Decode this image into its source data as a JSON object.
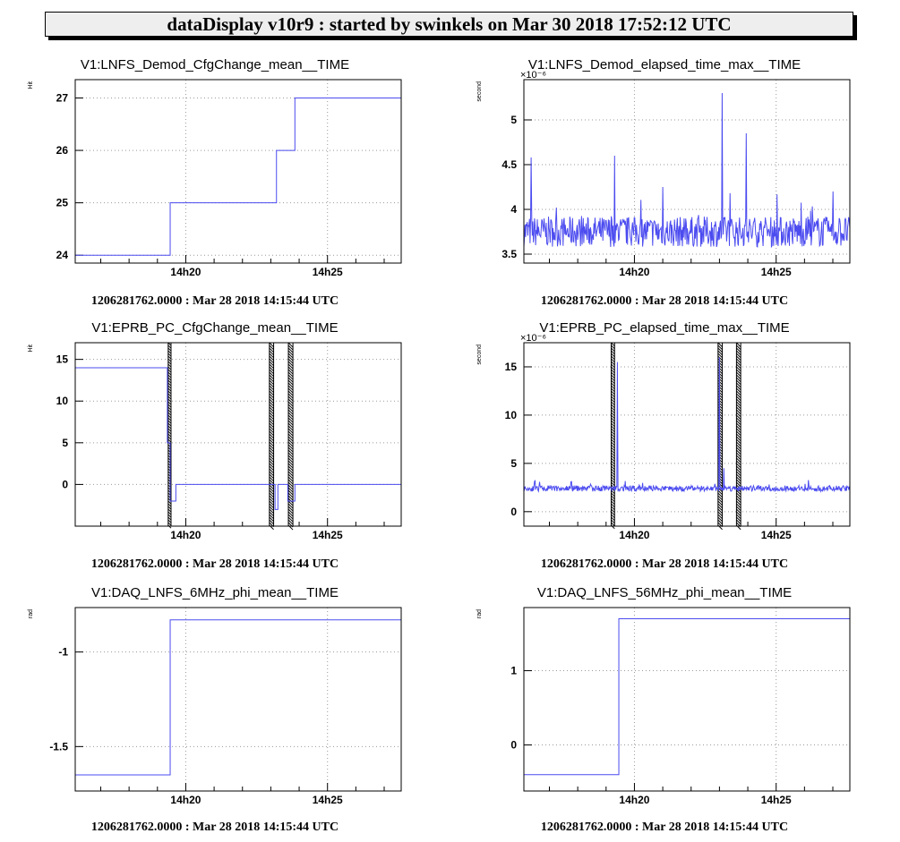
{
  "header": {
    "title": "dataDisplay v10r9 : started by swinkels on Mar 30 2018 17:52:12 UTC"
  },
  "colors": {
    "line": "#4b4bf0",
    "grid": "#9a9a9a",
    "axis": "#000000",
    "band": "#000000"
  },
  "chart_data": [
    {
      "type": "line",
      "title": "V1:LNFS_Demod_CfgChange_mean__TIME",
      "ylabel": "Hit",
      "timestamp": "1206281762.0000 : Mar 28 2018 14:15:44 UTC",
      "xticks": [
        {
          "min": 20,
          "label": "14h20"
        },
        {
          "min": 25,
          "label": "14h25"
        }
      ],
      "xlim": [
        16.1,
        27.6
      ],
      "ylim": [
        23.85,
        27.35
      ],
      "yticks": [
        {
          "v": 24,
          "label": "24"
        },
        {
          "v": 25,
          "label": "25"
        },
        {
          "v": 26,
          "label": "26"
        },
        {
          "v": 27,
          "label": "27"
        }
      ],
      "series": [
        {
          "kind": "step",
          "x": [
            16.1,
            19.45,
            23.2,
            23.85,
            27.6
          ],
          "y": [
            24,
            25,
            26,
            27,
            27
          ]
        }
      ]
    },
    {
      "type": "line",
      "title": "V1:LNFS_Demod_elapsed_time_max__TIME",
      "ylabel": "second",
      "multiplier": "×10⁻⁶",
      "timestamp": "1206281762.0000 : Mar 28 2018 14:15:44 UTC",
      "xticks": [
        {
          "min": 20,
          "label": "14h20"
        },
        {
          "min": 25,
          "label": "14h25"
        }
      ],
      "xlim": [
        16.1,
        27.6
      ],
      "ylim": [
        3.4,
        5.45
      ],
      "yticks": [
        {
          "v": 3.5,
          "label": "3.5"
        },
        {
          "v": 4,
          "label": "4"
        },
        {
          "v": 4.5,
          "label": "4.5"
        },
        {
          "v": 5,
          "label": "5"
        }
      ],
      "series": [
        {
          "kind": "noise",
          "x": [
            16.1,
            27.6
          ],
          "base": 3.75,
          "amp": 0.17,
          "spike_prob": 0.05,
          "spike_amp": 0.3,
          "seed": 7,
          "spikes": [
            [
              16.35,
              4.58
            ],
            [
              19.3,
              4.6
            ],
            [
              23.1,
              5.3
            ],
            [
              23.95,
              4.85
            ],
            [
              21.0,
              4.25
            ],
            [
              27.0,
              4.2
            ]
          ]
        }
      ]
    },
    {
      "type": "line",
      "title": "V1:EPRB_PC_CfgChange_mean__TIME",
      "ylabel": "Hit",
      "timestamp": "1206281762.0000 : Mar 28 2018 14:15:44 UTC",
      "xticks": [
        {
          "min": 20,
          "label": "14h20"
        },
        {
          "min": 25,
          "label": "14h25"
        }
      ],
      "xlim": [
        16.1,
        27.6
      ],
      "ylim": [
        -5,
        17
      ],
      "yticks": [
        {
          "v": 0,
          "label": "0"
        },
        {
          "v": 5,
          "label": "5"
        },
        {
          "v": 10,
          "label": "10"
        },
        {
          "v": 15,
          "label": "15"
        }
      ],
      "bands": [
        [
          19.38,
          19.48
        ],
        [
          22.95,
          23.1
        ],
        [
          23.62,
          23.78
        ]
      ],
      "series": [
        {
          "kind": "step",
          "x": [
            16.1,
            19.35,
            19.45,
            19.58,
            19.65,
            23.15,
            23.25,
            23.6,
            23.85,
            27.6
          ],
          "y": [
            14,
            5,
            -2,
            -2,
            0,
            -3,
            0,
            -2,
            0,
            0
          ]
        }
      ]
    },
    {
      "type": "line",
      "title": "V1:EPRB_PC_elapsed_time_max__TIME",
      "ylabel": "second",
      "multiplier": "×10⁻⁶",
      "timestamp": "1206281762.0000 : Mar 28 2018 14:15:44 UTC",
      "xticks": [
        {
          "min": 20,
          "label": "14h20"
        },
        {
          "min": 25,
          "label": "14h25"
        }
      ],
      "xlim": [
        16.1,
        27.6
      ],
      "ylim": [
        -1.5,
        17.5
      ],
      "yticks": [
        {
          "v": 0,
          "label": "0"
        },
        {
          "v": 5,
          "label": "5"
        },
        {
          "v": 10,
          "label": "10"
        },
        {
          "v": 15,
          "label": "15"
        }
      ],
      "bands": [
        [
          19.18,
          19.3
        ],
        [
          22.95,
          23.1
        ],
        [
          23.6,
          23.75
        ]
      ],
      "series": [
        {
          "kind": "noise",
          "x": [
            16.1,
            27.6
          ],
          "base": 2.4,
          "amp": 0.3,
          "spike_prob": 0.03,
          "spike_amp": 0.7,
          "seed": 11,
          "spikes": [
            [
              19.4,
              15.5
            ],
            [
              23.0,
              16.0
            ],
            [
              23.15,
              4.5
            ],
            [
              16.5,
              3.2
            ]
          ]
        }
      ]
    },
    {
      "type": "line",
      "title": "V1:DAQ_LNFS_6MHz_phi_mean__TIME",
      "ylabel": "rad",
      "timestamp": "1206281762.0000 : Mar 28 2018 14:15:44 UTC",
      "xticks": [
        {
          "min": 20,
          "label": "14h20"
        },
        {
          "min": 25,
          "label": "14h25"
        }
      ],
      "xlim": [
        16.1,
        27.6
      ],
      "ylim": [
        -1.735,
        -0.765
      ],
      "yticks": [
        {
          "v": -1.5,
          "label": "-1.5"
        },
        {
          "v": -1,
          "label": "-1"
        }
      ],
      "series": [
        {
          "kind": "step",
          "x": [
            16.1,
            19.45,
            27.6
          ],
          "y": [
            -1.65,
            -0.83,
            -0.83
          ]
        }
      ]
    },
    {
      "type": "line",
      "title": "V1:DAQ_LNFS_56MHz_phi_mean__TIME",
      "ylabel": "rad",
      "timestamp": "1206281762.0000 : Mar 28 2018 14:15:44 UTC",
      "xticks": [
        {
          "min": 20,
          "label": "14h20"
        },
        {
          "min": 25,
          "label": "14h25"
        }
      ],
      "xlim": [
        16.1,
        27.6
      ],
      "ylim": [
        -0.62,
        1.85
      ],
      "yticks": [
        {
          "v": 0,
          "label": "0"
        },
        {
          "v": 1,
          "label": "1"
        }
      ],
      "series": [
        {
          "kind": "step",
          "x": [
            16.1,
            19.45,
            27.6
          ],
          "y": [
            -0.4,
            1.7,
            1.7
          ]
        }
      ]
    }
  ]
}
